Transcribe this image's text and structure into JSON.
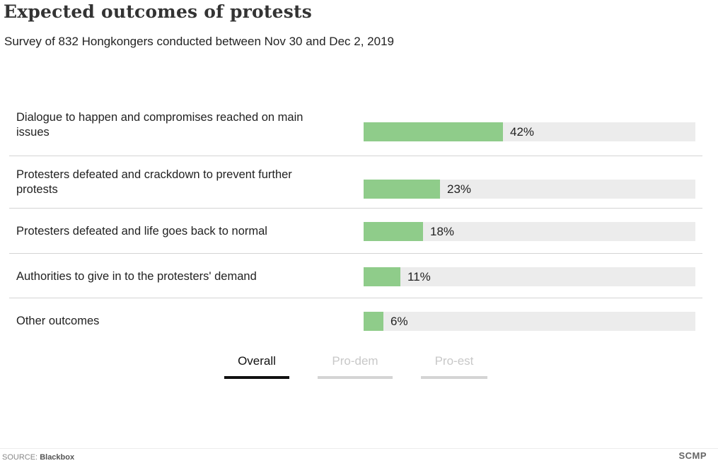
{
  "title": "Expected outcomes of protests",
  "subtitle": "Survey of 832 Hongkongers conducted between Nov 30 and Dec 2, 2019",
  "colors": {
    "bar": "#8fcc8a",
    "track": "#ececec",
    "active_tab": "#111111",
    "inactive_tab": "#c8c8c8"
  },
  "chart_data": {
    "type": "bar",
    "orientation": "horizontal",
    "categories": [
      "Dialogue to happen and compromises reached on main issues",
      "Protesters defeated and crackdown to prevent further protests",
      "Protesters defeated and life goes back to normal",
      "Authorities to give in to the protesters' demand",
      "Other outcomes"
    ],
    "values": [
      42,
      23,
      18,
      11,
      6
    ],
    "value_labels": [
      "42%",
      "23%",
      "18%",
      "11%",
      "6%"
    ],
    "unit": "%",
    "xlim": [
      0,
      100
    ],
    "grid": false
  },
  "tabs": [
    {
      "label": "Overall",
      "active": true
    },
    {
      "label": "Pro-dem",
      "active": false
    },
    {
      "label": "Pro-est",
      "active": false
    }
  ],
  "footer": {
    "source_prefix": "SOURCE: ",
    "source_name": "Blackbox",
    "brand": "SCMP"
  }
}
